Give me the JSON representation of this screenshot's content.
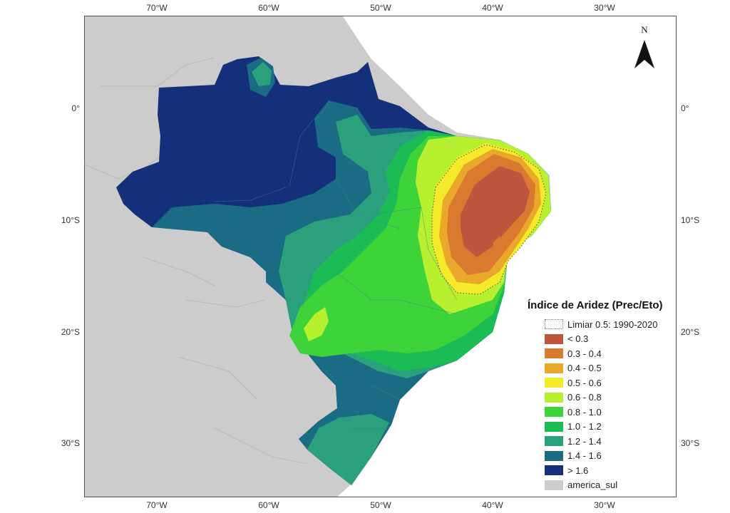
{
  "axes": {
    "longitude_labels": [
      "70°W",
      "60°W",
      "50°W",
      "40°W",
      "30°W"
    ],
    "latitude_labels": [
      "0°",
      "10°S",
      "20°S",
      "30°S"
    ]
  },
  "north_arrow": {
    "letter": "N",
    "icon": "north-arrow-icon"
  },
  "legend": {
    "title": "Índice de Aridez (Prec/Eto)",
    "items": [
      {
        "label": "Limiar 0.5: 1990-2020",
        "color": "#ffffff",
        "style": "dotted-outline"
      },
      {
        "label": "< 0.3",
        "color": "#c0553f"
      },
      {
        "label": "0.3 - 0.4",
        "color": "#d97a2e"
      },
      {
        "label": "0.4 - 0.5",
        "color": "#e9a82a"
      },
      {
        "label": "0.5 - 0.6",
        "color": "#f4ea2a"
      },
      {
        "label": "0.6 - 0.8",
        "color": "#b6f02f"
      },
      {
        "label": "0.8 - 1.0",
        "color": "#3fd33a"
      },
      {
        "label": "1.0 - 1.2",
        "color": "#1cbc55"
      },
      {
        "label": "1.2 - 1.4",
        "color": "#2aa17c"
      },
      {
        "label": "1.4 - 1.6",
        "color": "#1a6c84"
      },
      {
        "label": "> 1.6",
        "color": "#14307a"
      },
      {
        "label": "america_sul",
        "color": "#cccccc"
      }
    ]
  }
}
